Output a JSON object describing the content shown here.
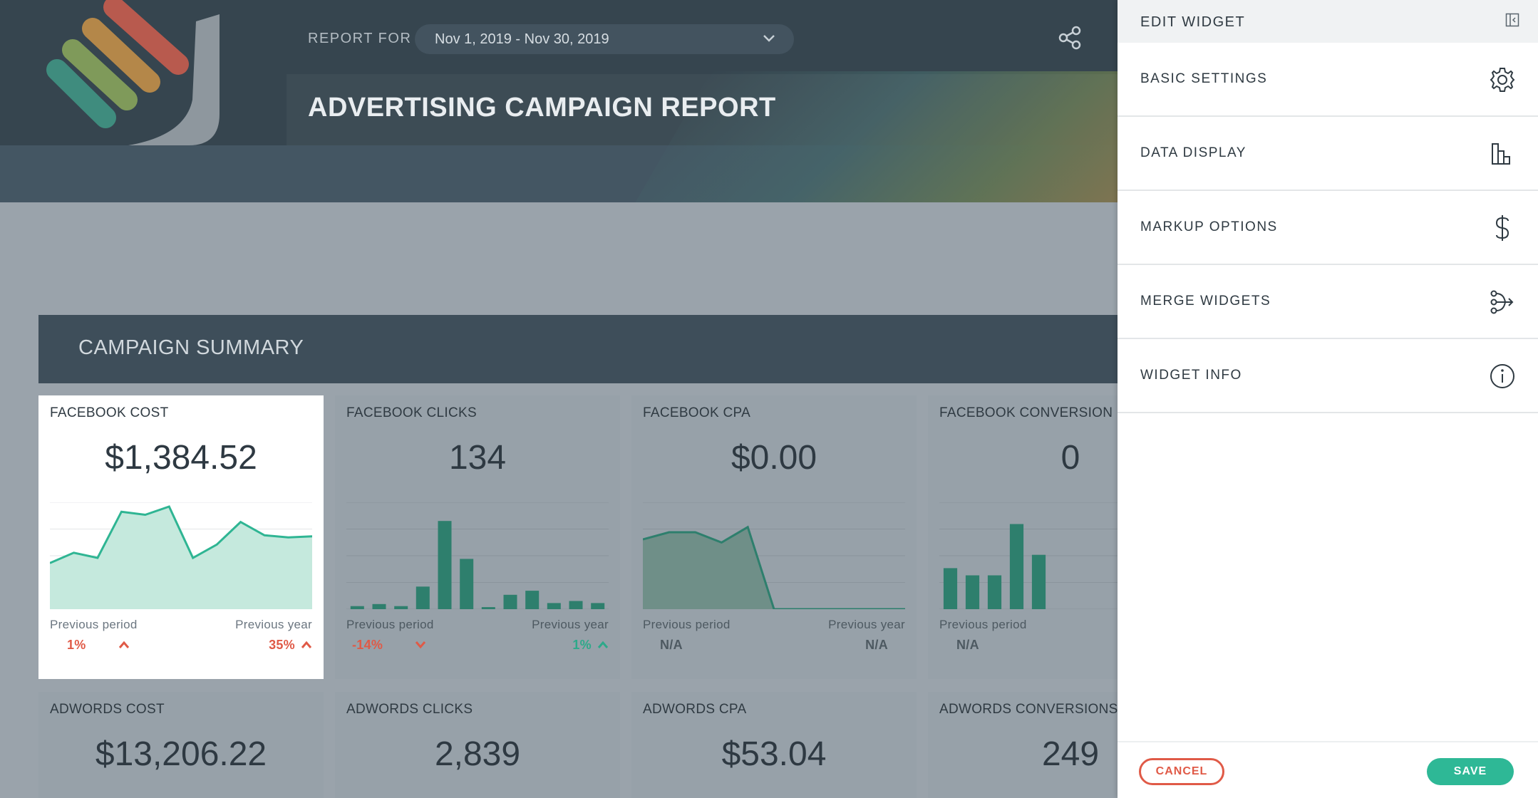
{
  "header": {
    "report_for_label": "REPORT FOR",
    "date_range": "Nov 1, 2019 - Nov 30, 2019",
    "title": "ADVERTISING CAMPAIGN REPORT",
    "share_icon": "share-icon",
    "dropdown_icon": "chevron-down-icon"
  },
  "summary": {
    "title": "CAMPAIGN SUMMARY"
  },
  "widgets": [
    {
      "title": "FACEBOOK COST",
      "value": "$1,384.52",
      "prev_period_label": "Previous period",
      "prev_year_label": "Previous year",
      "prev_period_value": "1%",
      "prev_year_value": "35%"
    },
    {
      "title": "FACEBOOK CLICKS",
      "value": "134",
      "prev_period_label": "Previous period",
      "prev_year_label": "Previous year",
      "prev_period_value": "-14%",
      "prev_year_value": "1%"
    },
    {
      "title": "FACEBOOK CPA",
      "value": "$0.00",
      "prev_period_label": "Previous period",
      "prev_year_label": "Previous year",
      "prev_period_value": "N/A",
      "prev_year_value": "N/A"
    },
    {
      "title": "FACEBOOK  CONVERSION",
      "value": "0",
      "prev_period_label": "Previous period",
      "prev_period_value": "N/A"
    }
  ],
  "widgets_row2": [
    {
      "title": "ADWORDS COST",
      "value": "$13,206.22"
    },
    {
      "title": "ADWORDS CLICKS",
      "value": "2,839"
    },
    {
      "title": "ADWORDS CPA",
      "value": "$53.04"
    },
    {
      "title": "ADWORDS CONVERSIONS",
      "value": "249"
    }
  ],
  "sparklines": {
    "facebook_cost": [
      0.45,
      0.55,
      0.5,
      0.95,
      0.92,
      1.0,
      0.5,
      0.63,
      0.85,
      0.72,
      0.7,
      0.71
    ],
    "facebook_clicks": [
      0.03,
      0.05,
      0.03,
      0.22,
      0.86,
      0.49,
      0.02,
      0.14,
      0.18,
      0.06,
      0.08,
      0.06
    ],
    "facebook_cpa": [
      0.68,
      0.75,
      0.75,
      0.65,
      0.8,
      0.0,
      0.0,
      0.0,
      0.0,
      0.0,
      0.0
    ],
    "facebook_conversion": [
      0.4,
      0.33,
      0.33,
      0.83,
      0.53
    ]
  },
  "panel": {
    "title": "EDIT WIDGET",
    "items": [
      {
        "label": "BASIC SETTINGS",
        "icon": "gear-icon"
      },
      {
        "label": "DATA DISPLAY",
        "icon": "bar-chart-icon"
      },
      {
        "label": "MARKUP OPTIONS",
        "icon": "dollar-icon"
      },
      {
        "label": "MERGE WIDGETS",
        "icon": "merge-icon"
      },
      {
        "label": "WIDGET INFO",
        "icon": "info-icon"
      }
    ],
    "cancel_label": "CANCEL",
    "save_label": "SAVE"
  },
  "colors": {
    "accent": "#2eb896",
    "danger": "#e05a47",
    "chart_fill": "#c5e9dd",
    "chart_line": "#2fb593",
    "bar": "#2e7f6d"
  }
}
